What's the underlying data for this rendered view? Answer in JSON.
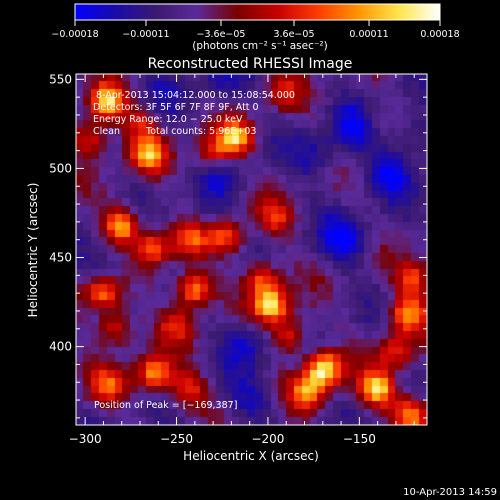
{
  "chart_data": {
    "type": "heatmap",
    "title": "Reconstructed RHESSI Image",
    "xlabel": "Heliocentric X (arcsec)",
    "ylabel": "Heliocentric Y (arcsec)",
    "xlim": [
      -305,
      -113
    ],
    "ylim": [
      356,
      553
    ],
    "x_ticks": [
      -300,
      -250,
      -200,
      -150
    ],
    "x_tick_labels": [
      "−300",
      "−250",
      "−200",
      "−150"
    ],
    "y_ticks": [
      400,
      450,
      500,
      550
    ],
    "y_tick_labels": [
      "400",
      "450",
      "500",
      "550"
    ],
    "colorbar": {
      "range": [
        -0.00018,
        0.00018
      ],
      "ticks": [
        -0.00018,
        -0.00011,
        -3.6e-05,
        3.6e-05,
        0.00011,
        0.00018
      ],
      "tick_labels": [
        "−0.00018",
        "−0.00011",
        "−3.6e−05",
        "3.6e−05",
        "0.00011",
        "0.00018"
      ],
      "unit_label": "(photons cm⁻² s⁻¹ asec⁻²)",
      "colors": [
        "#0000ff",
        "#1a0aa8",
        "#3a1a70",
        "#5a2a9a",
        "#7a0000",
        "#c80000",
        "#ff3c00",
        "#ff9600",
        "#ffe650",
        "#ffffff"
      ]
    },
    "annotations": [
      "8-Apr-2013 15:04:12.000 to 15:08:54.000",
      "Detectors: 3F 5F 6F 7F 8F 9F, Att 0",
      "Energy Range: 12.0 − 25.0 keV",
      "Clean",
      "Total counts: 5.96E+03",
      "Position of Peak = [−169,387]"
    ],
    "peak": {
      "x": -169,
      "y": 387
    },
    "hotspots": [
      {
        "x": -288,
        "y": 537,
        "a": 1.0
      },
      {
        "x": -297,
        "y": 517,
        "a": 0.55
      },
      {
        "x": -265,
        "y": 507,
        "a": 0.75
      },
      {
        "x": -270,
        "y": 525,
        "a": 0.4
      },
      {
        "x": -218,
        "y": 517,
        "a": 0.85
      },
      {
        "x": -230,
        "y": 508,
        "a": 0.55
      },
      {
        "x": -191,
        "y": 542,
        "a": 0.35
      },
      {
        "x": -280,
        "y": 468,
        "a": 0.85
      },
      {
        "x": -262,
        "y": 455,
        "a": 0.6
      },
      {
        "x": -242,
        "y": 460,
        "a": 0.55
      },
      {
        "x": -222,
        "y": 462,
        "a": 0.6
      },
      {
        "x": -196,
        "y": 472,
        "a": 0.45
      },
      {
        "x": -290,
        "y": 430,
        "a": 0.75
      },
      {
        "x": -283,
        "y": 410,
        "a": 0.55
      },
      {
        "x": -240,
        "y": 432,
        "a": 0.85
      },
      {
        "x": -250,
        "y": 412,
        "a": 0.45
      },
      {
        "x": -198,
        "y": 423,
        "a": 0.95
      },
      {
        "x": -203,
        "y": 438,
        "a": 0.6
      },
      {
        "x": -188,
        "y": 406,
        "a": 0.55
      },
      {
        "x": -287,
        "y": 378,
        "a": 0.55
      },
      {
        "x": -262,
        "y": 384,
        "a": 0.8
      },
      {
        "x": -243,
        "y": 375,
        "a": 0.5
      },
      {
        "x": -169,
        "y": 387,
        "a": 1.0
      },
      {
        "x": -178,
        "y": 375,
        "a": 0.7
      },
      {
        "x": -140,
        "y": 376,
        "a": 0.9
      },
      {
        "x": -123,
        "y": 418,
        "a": 0.75
      },
      {
        "x": -120,
        "y": 438,
        "a": 0.55
      },
      {
        "x": -130,
        "y": 397,
        "a": 0.55
      },
      {
        "x": -121,
        "y": 362,
        "a": 0.8
      },
      {
        "x": -143,
        "y": 526,
        "a": 0.3
      }
    ],
    "coldspots": [
      {
        "x": -150,
        "y": 523,
        "a": 1.0
      },
      {
        "x": -133,
        "y": 497,
        "a": 0.85
      },
      {
        "x": -158,
        "y": 460,
        "a": 0.95
      },
      {
        "x": -212,
        "y": 402,
        "a": 0.8
      },
      {
        "x": -173,
        "y": 507,
        "a": 0.6
      },
      {
        "x": -225,
        "y": 498,
        "a": 0.5
      },
      {
        "x": -208,
        "y": 370,
        "a": 0.6
      },
      {
        "x": -260,
        "y": 540,
        "a": 0.35
      },
      {
        "x": -225,
        "y": 548,
        "a": 0.55
      },
      {
        "x": -287,
        "y": 445,
        "a": 0.45
      },
      {
        "x": -233,
        "y": 475,
        "a": 0.4
      },
      {
        "x": -118,
        "y": 518,
        "a": 0.65
      }
    ]
  },
  "footer": {
    "timestamp": "10-Apr-2013 14:59"
  }
}
